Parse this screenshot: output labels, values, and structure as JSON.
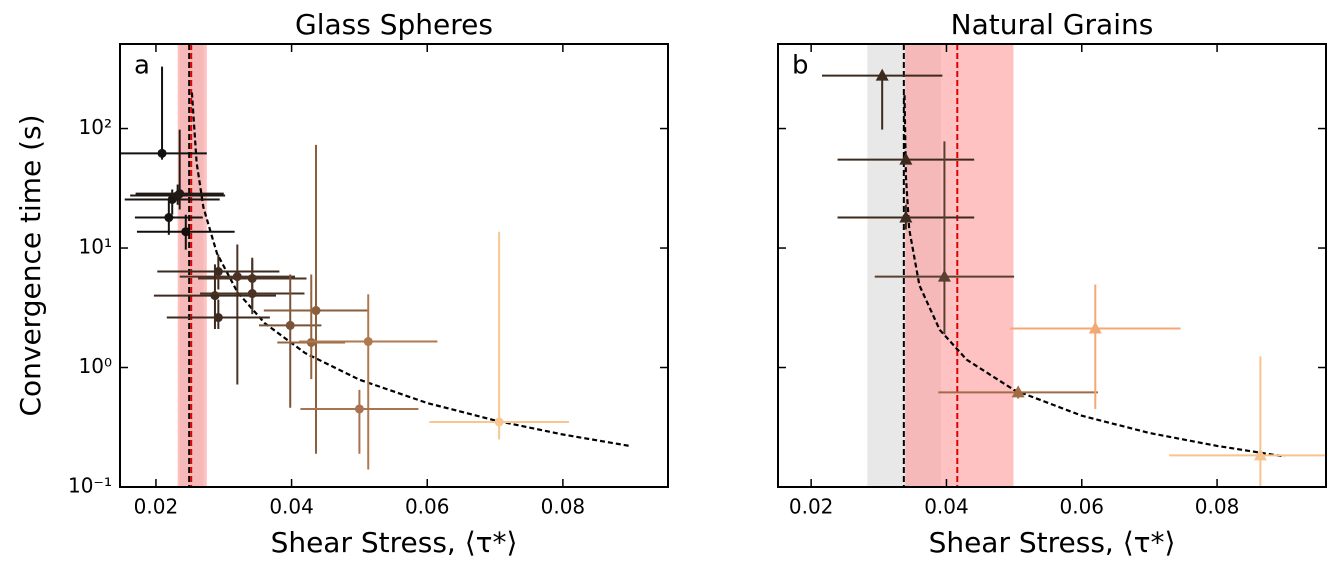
{
  "chart_data": [
    {
      "type": "scatter",
      "title": "Glass Spheres",
      "panel_label": "a",
      "xlabel": "Shear Stress, ⟨τ*⟩",
      "ylabel": "Convergence time (s)",
      "xlim": [
        0.0147,
        0.0955
      ],
      "ylim": [
        0.1,
        510
      ],
      "log_y": true,
      "xticks": [
        0.02,
        0.04,
        0.06,
        0.08
      ],
      "yticks": [
        {
          "value": 0.1,
          "label": "10⁻¹"
        },
        {
          "value": 1,
          "label": "10⁰"
        },
        {
          "value": 10,
          "label": "10¹"
        },
        {
          "value": 100,
          "label": "10²"
        }
      ],
      "show_ytick_labels": true,
      "marker": "o",
      "bands": [
        {
          "range": [
            0.0235,
            0.027
          ],
          "color": "#d9d9d9"
        },
        {
          "range": [
            0.0232,
            0.0275
          ],
          "color": "#ff9a9a"
        }
      ],
      "vlines": [
        {
          "x": 0.0249,
          "color": "#000000"
        },
        {
          "x": 0.0252,
          "color": "#e00000"
        }
      ],
      "curve": {
        "color": "#000000",
        "x": [
          0.0253,
          0.026,
          0.027,
          0.029,
          0.032,
          0.036,
          0.042,
          0.05,
          0.06,
          0.07,
          0.08,
          0.09
        ],
        "y": [
          200,
          52,
          21.9,
          9.0,
          4.29,
          2.36,
          1.32,
          0.79,
          0.505,
          0.36,
          0.275,
          0.22
        ]
      },
      "series": [
        {
          "x": [
            0.0209,
            0.0219,
            0.0224,
            0.0232,
            0.0235,
            0.0244,
            0.0292,
            0.032,
            0.0342,
            0.0287,
            0.0342,
            0.0292,
            0.0398,
            0.0436,
            0.0429,
            0.0513,
            0.05,
            0.0706
          ],
          "y": [
            62,
            18,
            25.5,
            27.5,
            28.5,
            13.7,
            6.36,
            5.77,
            5.56,
            4.0,
            4.16,
            2.62,
            2.25,
            3.0,
            1.62,
            1.65,
            0.45,
            0.35
          ],
          "xerr": [
            0.0066,
            0.005,
            0.007,
            0.007,
            0.0065,
            0.0072,
            0.009,
            0.0085,
            0.008,
            0.009,
            0.0077,
            0.0076,
            0.0046,
            0.0077,
            0.005,
            0.0102,
            0.0087,
            0.0103
          ],
          "y_lower": [
            55,
            12.9,
            19.1,
            23,
            21,
            9.7,
            4.5,
            0.72,
            3.1,
            2.1,
            2.8,
            2.1,
            0.46,
            0.19,
            0.8,
            0.14,
            0.19,
            0.25
          ],
          "y_upper": [
            330,
            25.4,
            30.9,
            34,
            98,
            19,
            8.8,
            10.7,
            8.3,
            7.3,
            8.0,
            3.7,
            6.0,
            73,
            6.0,
            4.1,
            0.65,
            13.7
          ],
          "colors": [
            "#111111",
            "#161210",
            "#1a1512",
            "#1e1814",
            "#221a15",
            "#120e0c",
            "#3d2a1f",
            "#4a3325",
            "#4a3325",
            "#3d2a1f",
            "#4a3325",
            "#3d2a1f",
            "#7a5238",
            "#8b5e3c",
            "#94653f",
            "#b07a50",
            "#a97350",
            "#f8c690"
          ]
        }
      ]
    },
    {
      "type": "scatter",
      "title": "Natural Grains",
      "panel_label": "b",
      "xlabel": "Shear Stress, ⟨τ*⟩",
      "xlim": [
        0.0151,
        0.0961
      ],
      "ylim": [
        0.1,
        510
      ],
      "log_y": true,
      "xticks": [
        0.02,
        0.04,
        0.06,
        0.08
      ],
      "yticks": [
        {
          "value": 0.1,
          "label": "10⁻¹"
        },
        {
          "value": 1,
          "label": "10⁰"
        },
        {
          "value": 10,
          "label": "10¹"
        },
        {
          "value": 100,
          "label": "10²"
        }
      ],
      "show_ytick_labels": false,
      "marker": "^",
      "bands": [
        {
          "range": [
            0.0283,
            0.0392
          ],
          "color": "#d9d9d9"
        },
        {
          "range": [
            0.0339,
            0.0499
          ],
          "color": "#ff9a9a"
        }
      ],
      "vlines": [
        {
          "x": 0.0337,
          "color": "#000000"
        },
        {
          "x": 0.0416,
          "color": "#e00000"
        }
      ],
      "curve": {
        "color": "#000000",
        "x": [
          0.0338,
          0.034,
          0.0345,
          0.036,
          0.039,
          0.043,
          0.05,
          0.06,
          0.07,
          0.08,
          0.09
        ],
        "y": [
          190,
          39.7,
          14.4,
          4.88,
          2.07,
          1.16,
          0.648,
          0.395,
          0.283,
          0.221,
          0.18
        ]
      },
      "series": [
        {
          "x": [
            0.0305,
            0.034,
            0.034,
            0.0397,
            0.0506,
            0.062,
            0.0864
          ],
          "y": [
            277,
            55,
            18,
            5.77,
            0.62,
            2.12,
            0.184
          ],
          "xerr": [
            0.0089,
            0.0101,
            0.0101,
            0.0103,
            0.0118,
            0.0126,
            0.0135
          ],
          "y_lower": [
            98,
            50,
            14.3,
            1.9,
            0.55,
            0.45,
            0.1
          ],
          "y_upper": [
            277,
            60,
            23,
            78,
            0.68,
            4.95,
            1.24
          ],
          "colors": [
            "#3b2a1d",
            "#3b2a1d",
            "#3b2a1d",
            "#5a4030",
            "#a36b45",
            "#f4a875",
            "#f7c38e"
          ]
        }
      ]
    }
  ]
}
